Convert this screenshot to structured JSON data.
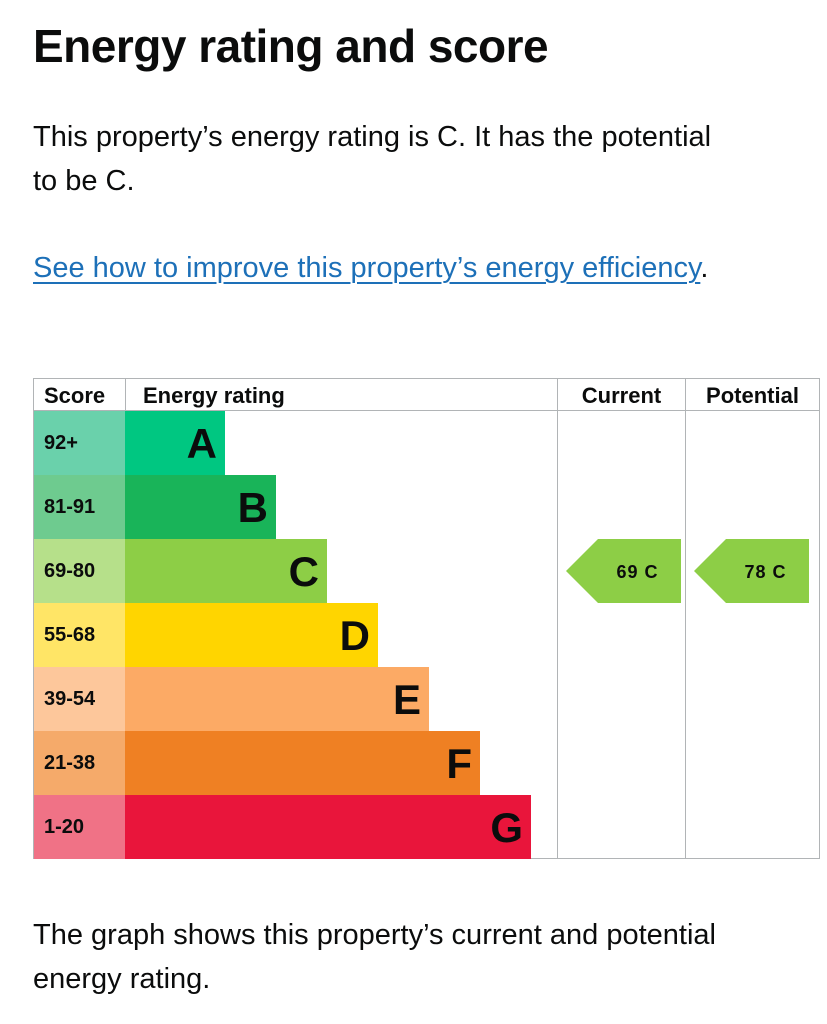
{
  "page": {
    "title": "Energy rating and score",
    "summary": "This property’s energy rating is C. It has the potential to be C.",
    "improve_link": "See how to improve this property’s energy efficiency",
    "improve_suffix": ".",
    "caption": "The graph shows this property’s current and potential energy rating."
  },
  "chart_data": {
    "type": "bar",
    "columns": {
      "score": "Score",
      "rating": "Energy rating",
      "current": "Current",
      "potential": "Potential"
    },
    "bands": [
      {
        "letter": "A",
        "range": "92+",
        "min": 92,
        "max": 100,
        "color": "#00c781",
        "score_color": "#6ad1ab"
      },
      {
        "letter": "B",
        "range": "81-91",
        "min": 81,
        "max": 91,
        "color": "#19b459",
        "score_color": "#6ecb8f"
      },
      {
        "letter": "C",
        "range": "69-80",
        "min": 69,
        "max": 80,
        "color": "#8dce46",
        "score_color": "#b6e08a"
      },
      {
        "letter": "D",
        "range": "55-68",
        "min": 55,
        "max": 68,
        "color": "#ffd500",
        "score_color": "#ffe566"
      },
      {
        "letter": "E",
        "range": "39-54",
        "min": 39,
        "max": 54,
        "color": "#fcaa65",
        "score_color": "#fdc79b"
      },
      {
        "letter": "F",
        "range": "21-38",
        "min": 21,
        "max": 38,
        "color": "#ef8023",
        "score_color": "#f5aa6a"
      },
      {
        "letter": "G",
        "range": "1-20",
        "min": 1,
        "max": 20,
        "color": "#e9153b",
        "score_color": "#f07286"
      }
    ],
    "current": {
      "score": 69,
      "letter": "C",
      "label": "69 C"
    },
    "potential": {
      "score": 78,
      "letter": "C",
      "label": "78 C"
    }
  }
}
